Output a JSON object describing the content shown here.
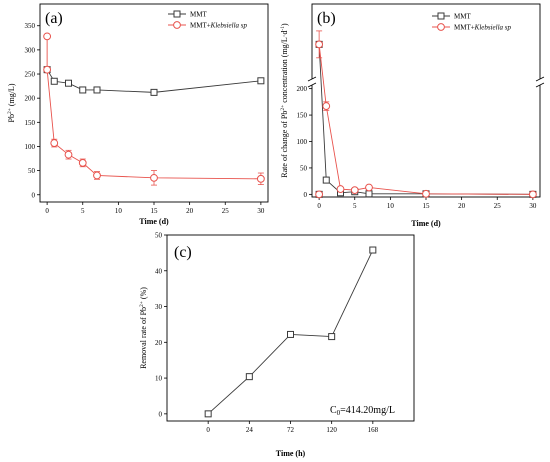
{
  "colors": {
    "mmt": "#3a3a3a",
    "klebsiella": "#e8534d",
    "axis": "#000000"
  },
  "chart_data": [
    {
      "panel": "(a)",
      "type": "line",
      "xlabel": "Time (d)",
      "ylabel": "Pb2+ (mg/L)",
      "ylabel_base": "Pb",
      "ylabel_sup": "2+",
      "ylabel_tail": " (mg/L)",
      "xlim": [
        -1,
        31
      ],
      "ylim": [
        -15,
        395
      ],
      "xticks": [
        0,
        5,
        10,
        15,
        20,
        25,
        30
      ],
      "yticks": [
        0,
        50,
        100,
        150,
        200,
        250,
        300,
        350
      ],
      "legend_position": "top-right",
      "grid": false,
      "series": [
        {
          "name": "MMT",
          "marker": "square",
          "color_key": "mmt",
          "x": [
            0,
            1,
            3,
            5,
            7,
            15,
            30
          ],
          "y": [
            259,
            235,
            231,
            217,
            217,
            212,
            236
          ],
          "err": [
            0,
            0,
            0,
            0,
            0,
            0,
            0
          ]
        },
        {
          "name": "MMT+",
          "name_italic": "Klebsiella sp",
          "marker": "circle",
          "color_key": "klebsiella",
          "x": [
            0,
            0,
            1,
            3,
            5,
            7,
            15,
            30
          ],
          "y": [
            328,
            259,
            107,
            83,
            66,
            40,
            35,
            33
          ],
          "err": [
            0,
            0,
            8,
            9,
            8,
            8,
            15,
            12
          ]
        }
      ]
    },
    {
      "panel": "(b)",
      "type": "line",
      "xlabel": "Time (d)",
      "ylabel": "Rate of change of Pb2+ concentration (mg/L·d-1)",
      "ylabel_a": "Rate of change of Pb",
      "ylabel_sup1": "2+",
      "ylabel_b": " concentration (mg/L·d",
      "ylabel_sup2": "-1",
      "ylabel_c": ")",
      "xlim": [
        -1,
        31
      ],
      "xticks": [
        0,
        5,
        10,
        15,
        20,
        25,
        30
      ],
      "yticks_lower": [
        0,
        50,
        100,
        150,
        200
      ],
      "ylim_lower": [
        -5,
        205
      ],
      "ylim_upper": [
        290,
        345
      ],
      "axis_break": true,
      "legend_position": "top-right",
      "grid": false,
      "series": [
        {
          "name": "MMT",
          "marker": "square",
          "color_key": "mmt",
          "x": [
            0,
            1,
            3,
            5,
            7,
            15,
            30
          ],
          "y": [
            0,
            27,
            3,
            5,
            1,
            1,
            0
          ],
          "err": [
            0,
            0,
            0,
            0,
            0,
            0,
            0
          ]
        },
        {
          "name": "MMT+",
          "name_italic": "Klebsiella sp",
          "marker": "circle",
          "color_key": "klebsiella",
          "x": [
            0,
            1,
            3,
            5,
            7,
            15,
            30
          ],
          "y": [
            0,
            167,
            10,
            8,
            13,
            1,
            0
          ],
          "err": [
            0,
            8,
            0,
            0,
            0,
            0,
            0
          ],
          "peak": {
            "x": 0,
            "y": 315,
            "err": 10
          }
        }
      ]
    },
    {
      "panel": "(c)",
      "type": "line",
      "xlabel": "Time (h)",
      "ylabel": "Removal rate of Pb2+ (%)",
      "ylabel_a": "Removal rate of Pb",
      "ylabel_sup": "2+",
      "ylabel_b": " (%)",
      "categories": [
        "0",
        "24",
        "72",
        "120",
        "168"
      ],
      "ylim": [
        -2,
        50
      ],
      "yticks": [
        0,
        10,
        20,
        30,
        40,
        50
      ],
      "annotation_base": "C",
      "annotation_sub": "0",
      "annotation_rest": "=414.20mg/L",
      "grid": false,
      "series": [
        {
          "name": "",
          "marker": "square",
          "color_key": "mmt",
          "values": [
            0,
            10.4,
            22.2,
            21.6,
            45.8
          ]
        }
      ]
    }
  ]
}
